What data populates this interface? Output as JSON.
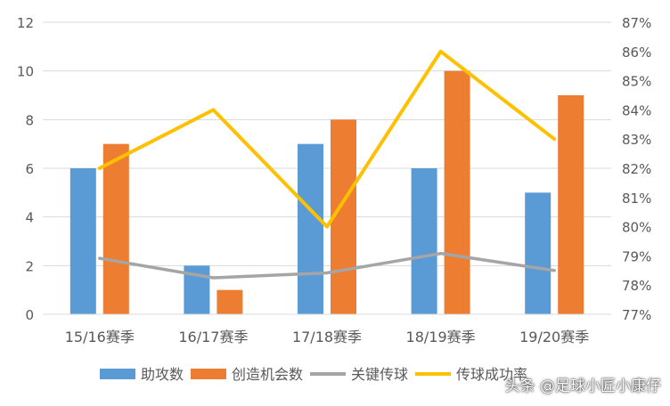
{
  "chart_data": {
    "type": "bar",
    "categories": [
      "15/16赛季",
      "16/17赛季",
      "17/18赛季",
      "18/19赛季",
      "19/20赛季"
    ],
    "series": [
      {
        "name": "助攻数",
        "kind": "bar",
        "axis": "left",
        "color": "#5b9bd5",
        "values": [
          6,
          2,
          7,
          6,
          5
        ]
      },
      {
        "name": "创造机会数",
        "kind": "bar",
        "axis": "left",
        "color": "#ed7d31",
        "values": [
          7,
          1,
          8,
          10,
          9
        ]
      },
      {
        "name": "关键传球",
        "kind": "line",
        "axis": "left",
        "color": "#a5a5a5",
        "values": [
          2.3,
          1.5,
          1.7,
          2.5,
          1.8
        ]
      },
      {
        "name": "传球成功率",
        "kind": "line",
        "axis": "right",
        "color": "#ffc000",
        "values": [
          0.82,
          0.84,
          0.8,
          0.86,
          0.83
        ]
      }
    ],
    "y_left": {
      "min": 0,
      "max": 12,
      "step": 2
    },
    "y_right": {
      "min": 0.77,
      "max": 0.87,
      "step": 0.01
    },
    "y_left_ticks": [
      "0",
      "2",
      "4",
      "6",
      "8",
      "10",
      "12"
    ],
    "y_right_ticks": [
      "77%",
      "78%",
      "79%",
      "80%",
      "81%",
      "82%",
      "83%",
      "84%",
      "85%",
      "86%",
      "87%"
    ],
    "grid": true,
    "legend_position": "bottom"
  },
  "watermark": "头条 @足球小匠小康仔"
}
